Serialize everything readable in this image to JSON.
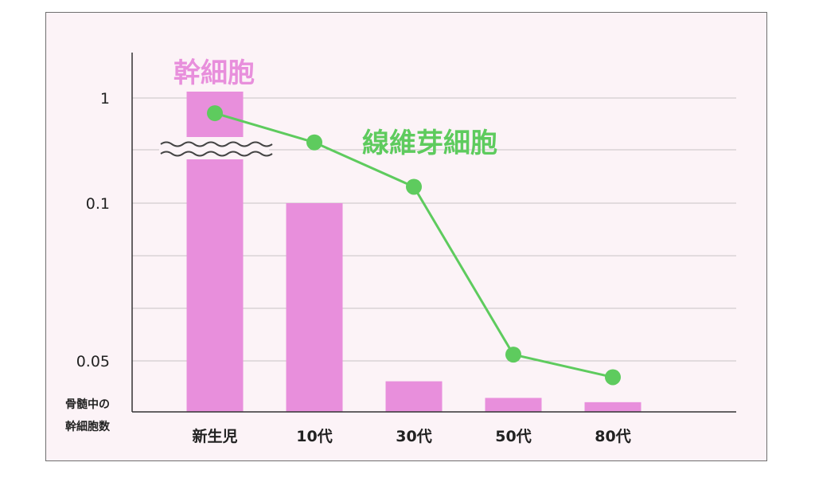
{
  "chart_data": {
    "type": "bar",
    "categories": [
      "新生児",
      "10代",
      "30代",
      "50代",
      "80代"
    ],
    "series": [
      {
        "name": "幹細胞",
        "type": "bar",
        "color": "#e88fdc",
        "values": [
          1,
          0.1,
          0.03,
          0.0137,
          0.0095
        ]
      },
      {
        "name": "線維芽細胞",
        "type": "line",
        "color": "#5ecb5e",
        "values": [
          0.87,
          0.62,
          0.24,
          0.052,
          0.034
        ]
      }
    ],
    "y_tick_labels": [
      "1",
      "0.1",
      "0.05"
    ],
    "y_tick_values": [
      1,
      0.1,
      0.05
    ],
    "ylabel_lines": [
      "骨髄中の",
      "幹細胞数"
    ],
    "axis_break": true,
    "grid": true,
    "colors": {
      "bar": "#e88fdc",
      "line": "#5ecb5e",
      "background": "#fcf3f7"
    }
  }
}
